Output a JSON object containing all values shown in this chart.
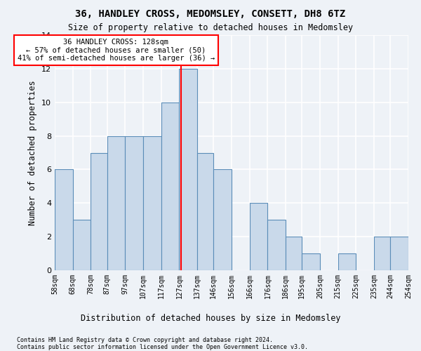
{
  "title1": "36, HANDLEY CROSS, MEDOMSLEY, CONSETT, DH8 6TZ",
  "title2": "Size of property relative to detached houses in Medomsley",
  "xlabel": "Distribution of detached houses by size in Medomsley",
  "ylabel": "Number of detached properties",
  "footnote1": "Contains HM Land Registry data © Crown copyright and database right 2024.",
  "footnote2": "Contains public sector information licensed under the Open Government Licence v3.0.",
  "bar_edges": [
    58,
    68,
    78,
    87,
    97,
    107,
    117,
    127,
    137,
    146,
    156,
    166,
    176,
    186,
    195,
    205,
    215,
    225,
    235,
    244,
    254
  ],
  "bar_heights": [
    6,
    3,
    7,
    8,
    8,
    8,
    10,
    12,
    7,
    6,
    0,
    4,
    3,
    2,
    1,
    0,
    1,
    0,
    2,
    2
  ],
  "bar_color": "#c9d9ea",
  "bar_edgecolor": "#5b8db8",
  "property_size": 128,
  "vline_color": "red",
  "annotation_text": "36 HANDLEY CROSS: 128sqm\n← 57% of detached houses are smaller (50)\n41% of semi-detached houses are larger (36) →",
  "annotation_box_edgecolor": "red",
  "annotation_box_facecolor": "white",
  "ylim": [
    0,
    14
  ],
  "yticks": [
    0,
    2,
    4,
    6,
    8,
    10,
    12,
    14
  ],
  "tick_labels": [
    "58sqm",
    "68sqm",
    "78sqm",
    "87sqm",
    "97sqm",
    "107sqm",
    "117sqm",
    "127sqm",
    "137sqm",
    "146sqm",
    "156sqm",
    "166sqm",
    "176sqm",
    "186sqm",
    "195sqm",
    "205sqm",
    "215sqm",
    "225sqm",
    "235sqm",
    "244sqm",
    "254sqm"
  ],
  "background_color": "#eef2f7",
  "grid_color": "white"
}
